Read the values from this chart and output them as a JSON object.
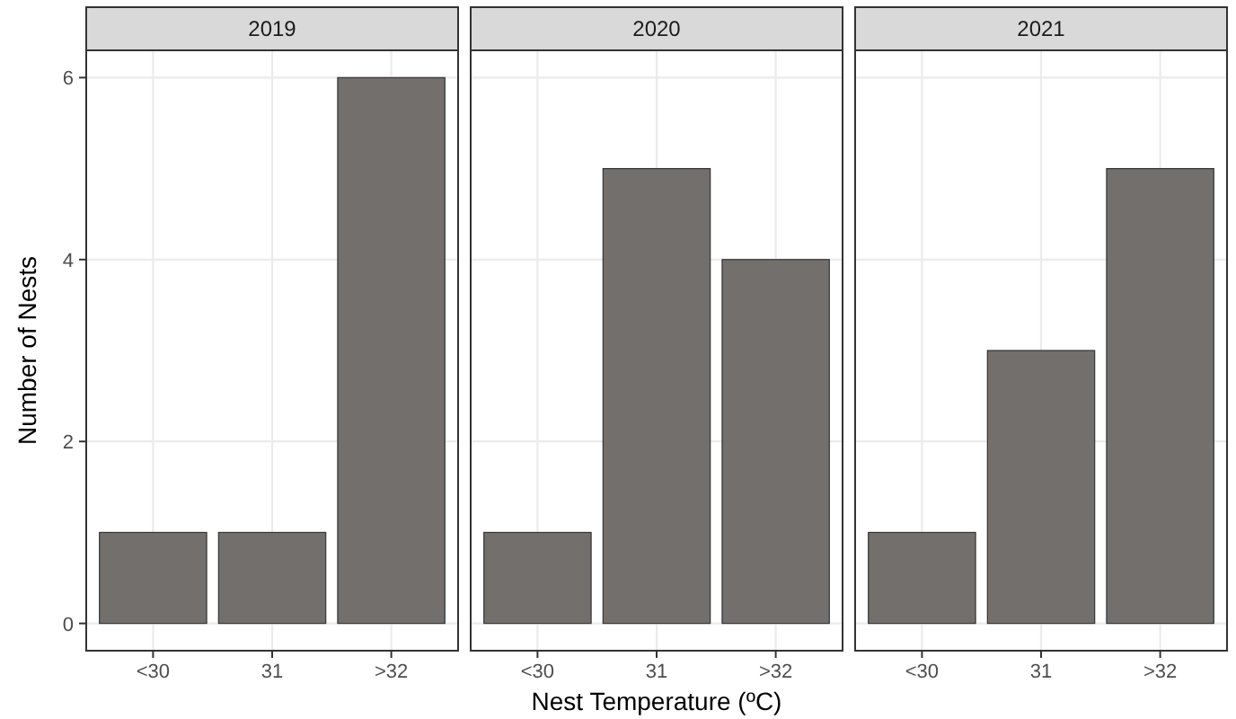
{
  "chart_data": [
    {
      "type": "bar",
      "title": "2019",
      "ylabel": "Number of Nests",
      "categories": [
        "<30",
        "31",
        ">32"
      ],
      "values": [
        1,
        1,
        6
      ],
      "color": "#736f6d",
      "ylim": [
        -0.3,
        6.3
      ],
      "yticks": [
        0,
        2,
        4,
        6
      ],
      "grid": true
    },
    {
      "type": "bar",
      "title": "2020",
      "xlabel": "Nest Temperature (ºC)",
      "categories": [
        "<30",
        "31",
        ">32"
      ],
      "values": [
        1,
        5,
        4
      ],
      "color": "#736f6d",
      "ylim": [
        -0.3,
        6.3
      ],
      "yticks": [
        0,
        2,
        4,
        6
      ],
      "grid": true,
      "tick_labels": "x"
    },
    {
      "type": "bar",
      "title": "2021",
      "categories": [
        "<30",
        "31",
        ">32"
      ],
      "values": [
        1,
        3,
        5
      ],
      "color": "#736f6d",
      "ylim": [
        -0.3,
        6.3
      ],
      "yticks": [
        0,
        2,
        4,
        6
      ],
      "grid": true,
      "tick_labels": "x"
    }
  ]
}
